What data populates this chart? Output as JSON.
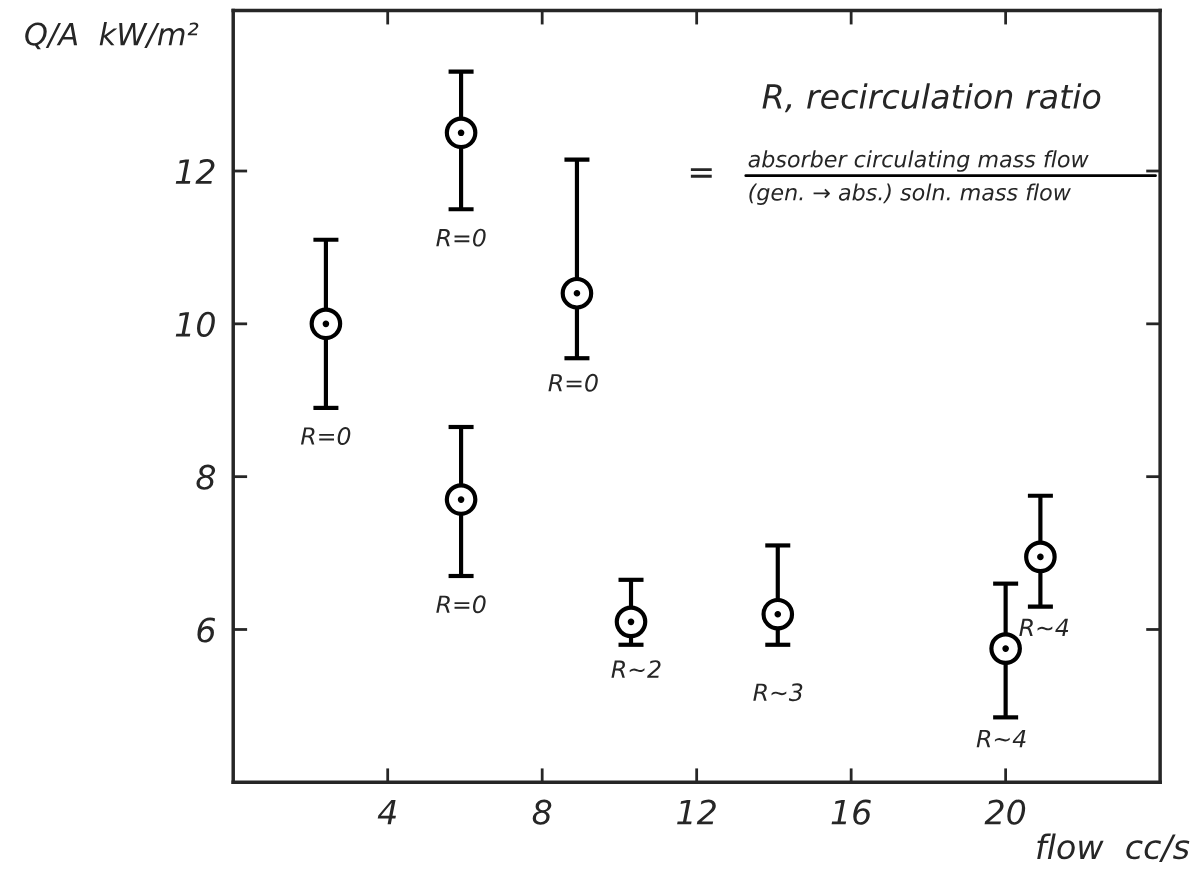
{
  "chart_data": {
    "type": "scatter",
    "xlabel": "flow  cc/s",
    "ylabel": "Q/A  kW/m²",
    "x": [
      2.4,
      5.9,
      5.9,
      8.9,
      10.3,
      14.1,
      20.0,
      20.9
    ],
    "values": [
      10.0,
      12.5,
      7.7,
      10.4,
      6.1,
      6.2,
      5.75,
      6.95
    ],
    "errors": [
      [
        8.9,
        11.1
      ],
      [
        11.5,
        13.3
      ],
      [
        6.7,
        8.65
      ],
      [
        9.55,
        12.15
      ],
      [
        5.8,
        6.65
      ],
      [
        5.8,
        7.1
      ],
      [
        4.85,
        6.6
      ],
      [
        6.3,
        7.75
      ]
    ],
    "color": "#000000",
    "marker": "circle",
    "grid": false,
    "xlim": [
      0,
      24
    ],
    "ylim": [
      4,
      14.1
    ],
    "xticks": [
      4,
      8,
      12,
      16,
      20
    ],
    "yticks": [
      6,
      8,
      10,
      12
    ],
    "annotations": [
      "R=0",
      "R=0",
      "R=0",
      "R=0",
      "R~2",
      "R~3",
      "R~4",
      "R~4",
      "R, recirculation ratio",
      "=",
      "absorber circulating mass flow",
      "(gen. → abs.) soln. mass flow"
    ]
  }
}
